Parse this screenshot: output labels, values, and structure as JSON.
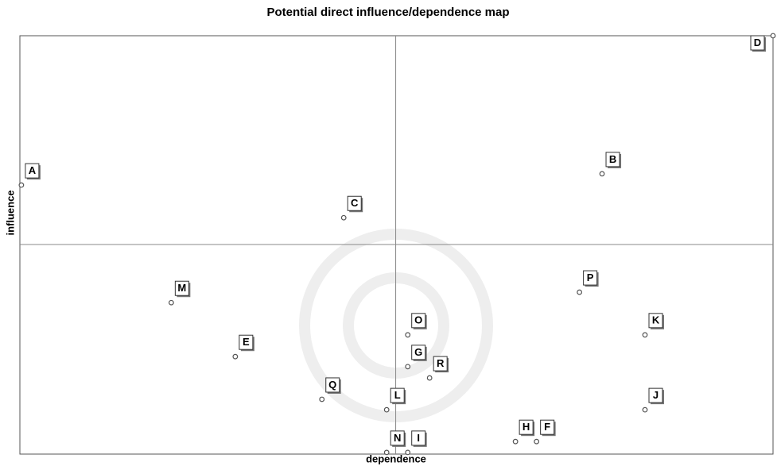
{
  "chart_data": {
    "type": "scatter",
    "title": "Potential direct influence/dependence map",
    "x_label": "dependence",
    "y_label": "influence",
    "labels": [
      "A",
      "B",
      "C",
      "D",
      "M",
      "E",
      "P",
      "K",
      "O",
      "G",
      "R",
      "Q",
      "J",
      "L",
      "H",
      "F",
      "N",
      "I"
    ],
    "x": [
      0.2,
      77.3,
      43.0,
      100,
      20.1,
      28.6,
      74.3,
      83.0,
      51.5,
      51.5,
      54.4,
      40.1,
      83.0,
      48.7,
      65.8,
      68.6,
      48.7,
      51.5
    ],
    "y": [
      64.3,
      67.0,
      56.5,
      100,
      36.2,
      23.3,
      38.7,
      28.5,
      28.5,
      20.9,
      18.2,
      13.1,
      10.6,
      10.6,
      3.0,
      3.0,
      0.4,
      0.4
    ],
    "xlim": [
      0,
      100
    ],
    "ylim": [
      0,
      100
    ],
    "reference_lines": {
      "x": 49.9,
      "y": 50.1
    },
    "color": "#555555"
  }
}
